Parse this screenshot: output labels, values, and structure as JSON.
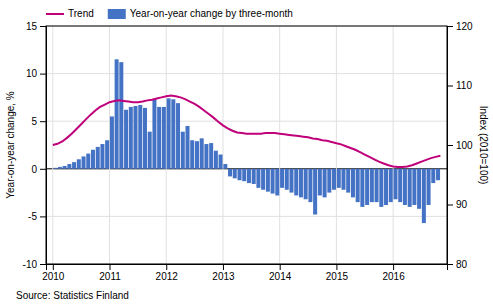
{
  "chart_data": {
    "type": "bar",
    "ylabel": "Year-on-year change, %",
    "y2label": "Index (2010=100)",
    "annotations": [
      "Source: Statistics Finland"
    ],
    "xlim": [
      2009.88,
      2016.95
    ],
    "xticks": [
      2010,
      2011,
      2012,
      2013,
      2014,
      2015,
      2016
    ],
    "ylim": [
      -10,
      15
    ],
    "yticks": [
      -10,
      -5,
      0,
      5,
      10,
      15
    ],
    "y2lim": [
      80,
      120
    ],
    "y2ticks": [
      80,
      90,
      100,
      110,
      120
    ],
    "grid": true,
    "legend": "top-left",
    "series": [
      {
        "name": "Trend",
        "type": "line",
        "axis": "y2",
        "color": "#C0007A",
        "x": [
          2010.0,
          2010.083,
          2010.167,
          2010.25,
          2010.333,
          2010.417,
          2010.5,
          2010.583,
          2010.667,
          2010.75,
          2010.833,
          2010.917,
          2011.0,
          2011.083,
          2011.167,
          2011.25,
          2011.333,
          2011.417,
          2011.5,
          2011.583,
          2011.667,
          2011.75,
          2011.833,
          2011.917,
          2012.0,
          2012.083,
          2012.167,
          2012.25,
          2012.333,
          2012.417,
          2012.5,
          2012.583,
          2012.667,
          2012.75,
          2012.833,
          2012.917,
          2013.0,
          2013.083,
          2013.167,
          2013.25,
          2013.333,
          2013.417,
          2013.5,
          2013.583,
          2013.667,
          2013.75,
          2013.833,
          2013.917,
          2014.0,
          2014.083,
          2014.167,
          2014.25,
          2014.333,
          2014.417,
          2014.5,
          2014.583,
          2014.667,
          2014.75,
          2014.833,
          2014.917,
          2015.0,
          2015.083,
          2015.167,
          2015.25,
          2015.333,
          2015.417,
          2015.5,
          2015.583,
          2015.667,
          2015.75,
          2015.833,
          2015.917,
          2016.0,
          2016.083,
          2016.167,
          2016.25,
          2016.333,
          2016.417,
          2016.5,
          2016.583,
          2016.667,
          2016.75,
          2016.833
        ],
        "values": [
          100.0,
          100.2,
          100.6,
          101.2,
          101.9,
          102.7,
          103.5,
          104.3,
          105.1,
          105.8,
          106.4,
          106.8,
          107.2,
          107.4,
          107.5,
          107.4,
          107.3,
          107.2,
          107.2,
          107.3,
          107.5,
          107.6,
          107.8,
          108.0,
          108.2,
          108.3,
          108.2,
          108.0,
          107.7,
          107.3,
          106.9,
          106.4,
          105.8,
          105.2,
          104.6,
          103.9,
          103.3,
          102.8,
          102.4,
          102.1,
          102.0,
          101.9,
          101.9,
          101.9,
          101.9,
          102.0,
          102.0,
          102.0,
          101.9,
          101.8,
          101.7,
          101.6,
          101.5,
          101.4,
          101.3,
          101.1,
          101.0,
          100.8,
          100.7,
          100.5,
          100.3,
          100.1,
          99.8,
          99.5,
          99.2,
          98.8,
          98.4,
          98.0,
          97.6,
          97.2,
          96.9,
          96.6,
          96.4,
          96.3,
          96.3,
          96.4,
          96.6,
          96.9,
          97.2,
          97.5,
          97.8,
          98.0,
          98.2
        ]
      },
      {
        "name": "Year-on-year change by three-month",
        "type": "bar",
        "color": "#4472C4",
        "x": [
          2010.042,
          2010.125,
          2010.208,
          2010.292,
          2010.375,
          2010.458,
          2010.542,
          2010.625,
          2010.708,
          2010.792,
          2010.875,
          2010.958,
          2011.042,
          2011.125,
          2011.208,
          2011.292,
          2011.375,
          2011.458,
          2011.542,
          2011.625,
          2011.708,
          2011.792,
          2011.875,
          2011.958,
          2012.042,
          2012.125,
          2012.208,
          2012.292,
          2012.375,
          2012.458,
          2012.542,
          2012.625,
          2012.708,
          2012.792,
          2012.875,
          2012.958,
          2013.042,
          2013.125,
          2013.208,
          2013.292,
          2013.375,
          2013.458,
          2013.542,
          2013.625,
          2013.708,
          2013.792,
          2013.875,
          2013.958,
          2014.042,
          2014.125,
          2014.208,
          2014.292,
          2014.375,
          2014.458,
          2014.542,
          2014.625,
          2014.708,
          2014.792,
          2014.875,
          2014.958,
          2015.042,
          2015.125,
          2015.208,
          2015.292,
          2015.375,
          2015.458,
          2015.542,
          2015.625,
          2015.708,
          2015.792,
          2015.875,
          2015.958,
          2016.042,
          2016.125,
          2016.208,
          2016.292,
          2016.375,
          2016.458,
          2016.542,
          2016.625,
          2016.708,
          2016.792
        ],
        "values": [
          0.1,
          0.2,
          0.3,
          0.5,
          0.7,
          1.0,
          1.3,
          1.6,
          2.0,
          2.3,
          2.6,
          3.0,
          5.5,
          11.5,
          11.2,
          6.2,
          6.5,
          6.6,
          6.7,
          6.4,
          3.9,
          7.3,
          6.5,
          6.5,
          7.4,
          7.3,
          6.9,
          3.9,
          4.5,
          3.0,
          2.9,
          3.2,
          2.6,
          2.7,
          1.9,
          1.5,
          0.5,
          -0.8,
          -1.0,
          -1.2,
          -1.3,
          -1.5,
          -1.6,
          -2.0,
          -2.2,
          -2.4,
          -2.6,
          -2.8,
          -2.0,
          -2.2,
          -2.5,
          -2.8,
          -3.0,
          -3.2,
          -3.5,
          -4.8,
          -2.8,
          -3.0,
          -2.5,
          -2.2,
          -2.0,
          -2.2,
          -2.5,
          -3.0,
          -3.5,
          -4.0,
          -3.8,
          -3.5,
          -3.5,
          -4.0,
          -3.8,
          -3.5,
          -3.2,
          -3.5,
          -3.8,
          -4.0,
          -3.8,
          -4.2,
          -5.7,
          -3.8,
          -1.5,
          -1.2
        ]
      }
    ]
  }
}
